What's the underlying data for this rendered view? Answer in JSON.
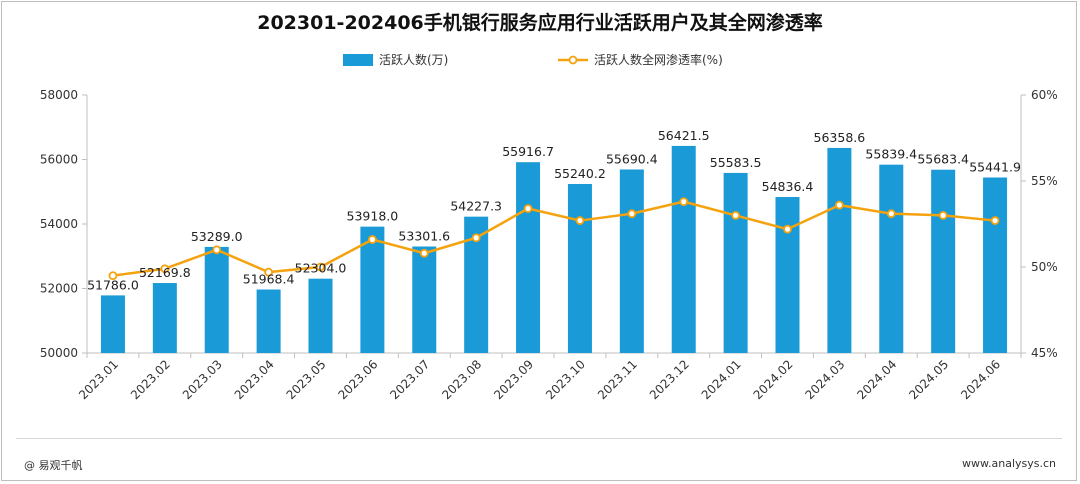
{
  "chart_data": {
    "type": "bar",
    "title": "202301-202406手机银行服务应用行业活跃用户及其全网渗透率",
    "categories": [
      "2023.01",
      "2023.02",
      "2023.03",
      "2023.04",
      "2023.05",
      "2023.06",
      "2023.07",
      "2023.08",
      "2023.09",
      "2023.10",
      "2023.11",
      "2023.12",
      "2024.01",
      "2024.02",
      "2024.03",
      "2024.04",
      "2024.05",
      "2024.06"
    ],
    "series": [
      {
        "name": "活跃人数(万)",
        "type": "bar",
        "axis": "left",
        "color": "#1a9ad6",
        "values": [
          51786.0,
          52169.8,
          53289.0,
          51968.4,
          52304.0,
          53918.0,
          53301.6,
          54227.3,
          55916.7,
          55240.2,
          55690.4,
          56421.5,
          55583.5,
          54836.4,
          56358.6,
          55839.4,
          55683.4,
          55441.9
        ],
        "labels": [
          "51786.0",
          "52169.8",
          "53289.0",
          "51968.4",
          "52304.0",
          "53918.0",
          "53301.6",
          "54227.3",
          "55916.7",
          "55240.2",
          "55690.4",
          "56421.5",
          "55583.5",
          "54836.4",
          "56358.6",
          "55839.4",
          "55683.4",
          "55441.9"
        ]
      },
      {
        "name": "活跃人数全网渗透率(%)",
        "type": "line",
        "axis": "right",
        "color": "#f5a20f",
        "values": [
          49.5,
          49.9,
          51.0,
          49.7,
          50.0,
          51.6,
          50.8,
          51.7,
          53.4,
          52.7,
          53.1,
          53.8,
          53.0,
          52.2,
          53.6,
          53.1,
          53.0,
          52.7
        ]
      }
    ],
    "y_left": {
      "min": 50000,
      "max": 58000,
      "ticks": [
        "50000",
        "52000",
        "54000",
        "56000",
        "58000"
      ]
    },
    "y_right": {
      "min": 45,
      "max": 60,
      "ticks": [
        "45%",
        "50%",
        "55%",
        "60%"
      ]
    },
    "legend_position": "top-center",
    "grid": false
  },
  "footer": {
    "brand": "@ 易观千帆",
    "website": "www.analysys.cn"
  }
}
